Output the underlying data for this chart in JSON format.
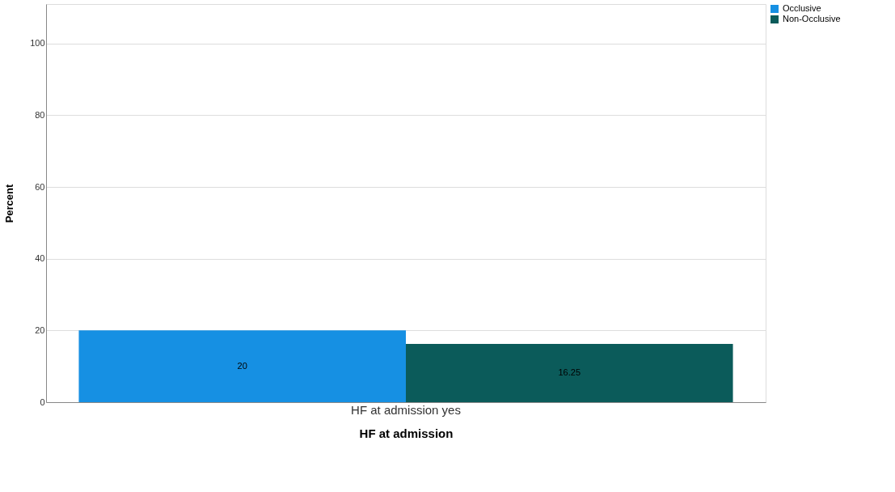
{
  "chart_data": {
    "type": "bar",
    "xlabel": "HF at admission",
    "ylabel": "Percent",
    "categories": [
      "HF at admission yes"
    ],
    "series": [
      {
        "name": "Occlusive",
        "color": "#1690e3",
        "values": [
          20
        ]
      },
      {
        "name": "Non-Occlusive",
        "color": "#0b5b5a",
        "values": [
          16.25
        ]
      }
    ],
    "ylim": [
      0,
      111
    ],
    "yticks": [
      0,
      20,
      40,
      60,
      80,
      100
    ],
    "grid": "y",
    "legend": "top right",
    "data_labels": true
  }
}
